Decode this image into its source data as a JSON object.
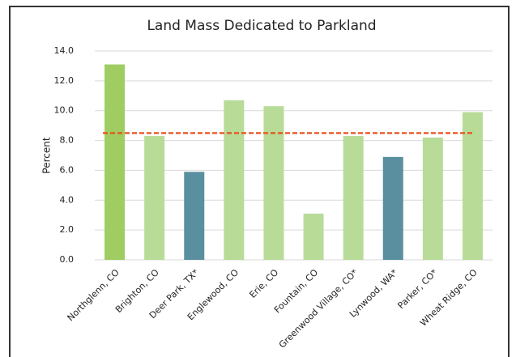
{
  "chart_data": {
    "type": "bar",
    "title": "Land Mass Dedicated to Parkland",
    "y_label": "Percent",
    "categories": [
      "Northglenn, CO",
      "Brighton, CO",
      "Deer Park, TX*",
      "Englewood, CO",
      "Erie, CO",
      "Fountain, CO",
      "Greenwood Village, CO*",
      "Lynwood, WA*",
      "Parker, CO*",
      "Wheat Ridge, CO"
    ],
    "values": [
      13.1,
      8.3,
      5.9,
      10.7,
      10.3,
      3.1,
      8.3,
      6.9,
      8.2,
      9.9
    ],
    "colors": [
      "#9fcd62",
      "#b8dc98",
      "#5a8f9f",
      "#b8dc98",
      "#b8dc98",
      "#b8dc98",
      "#b8dc98",
      "#5a8f9f",
      "#b8dc98",
      "#b8dc98"
    ],
    "reference_line": {
      "value": 8.5,
      "color": "#e8501c"
    },
    "ylim": [
      0,
      14
    ],
    "yticks": [
      {
        "value": 0,
        "label": "0.0"
      },
      {
        "value": 2,
        "label": "2.0"
      },
      {
        "value": 4,
        "label": "4.0"
      },
      {
        "value": 6,
        "label": "6.0"
      },
      {
        "value": 8,
        "label": "8.0"
      },
      {
        "value": 10,
        "label": "10.0"
      },
      {
        "value": 12,
        "label": "12.0"
      },
      {
        "value": 14,
        "label": "14.0"
      }
    ],
    "grid": true
  }
}
